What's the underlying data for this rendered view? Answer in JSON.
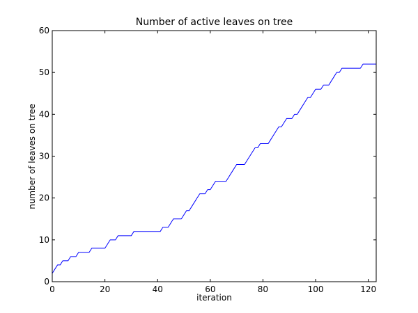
{
  "colors": {
    "line": "#0000ff",
    "axes": "#000000",
    "background": "#ffffff"
  },
  "chart_data": {
    "type": "line",
    "title": "Number of active leaves on tree",
    "xlabel": "iteration",
    "ylabel": "number of leaves on tree",
    "xlim": [
      0,
      123
    ],
    "ylim": [
      0,
      60
    ],
    "xticks": [
      0,
      20,
      40,
      60,
      80,
      100,
      120
    ],
    "yticks": [
      0,
      10,
      20,
      30,
      40,
      50,
      60
    ],
    "grid": false,
    "series": [
      {
        "color": "#0000ff",
        "x": [
          0,
          1,
          2,
          3,
          4,
          5,
          6,
          7,
          8,
          9,
          10,
          11,
          12,
          13,
          14,
          15,
          16,
          17,
          18,
          19,
          20,
          21,
          22,
          23,
          24,
          25,
          26,
          27,
          28,
          29,
          30,
          31,
          32,
          33,
          34,
          35,
          36,
          37,
          38,
          39,
          40,
          41,
          42,
          43,
          44,
          45,
          46,
          47,
          48,
          49,
          50,
          51,
          52,
          53,
          54,
          55,
          56,
          57,
          58,
          59,
          60,
          61,
          62,
          63,
          64,
          65,
          66,
          67,
          68,
          69,
          70,
          71,
          72,
          73,
          74,
          75,
          76,
          77,
          78,
          79,
          80,
          81,
          82,
          83,
          84,
          85,
          86,
          87,
          88,
          89,
          90,
          91,
          92,
          93,
          94,
          95,
          96,
          97,
          98,
          99,
          100,
          101,
          102,
          103,
          104,
          105,
          106,
          107,
          108,
          109,
          110,
          111,
          112,
          113,
          114,
          115,
          116,
          117,
          118,
          119,
          120,
          121,
          122,
          123
        ],
        "y": [
          2,
          3,
          4,
          4,
          5,
          5,
          5,
          6,
          6,
          6,
          7,
          7,
          7,
          7,
          7,
          8,
          8,
          8,
          8,
          8,
          8,
          9,
          10,
          10,
          10,
          11,
          11,
          11,
          11,
          11,
          11,
          12,
          12,
          12,
          12,
          12,
          12,
          12,
          12,
          12,
          12,
          12,
          13,
          13,
          13,
          14,
          15,
          15,
          15,
          15,
          16,
          17,
          17,
          18,
          19,
          20,
          21,
          21,
          21,
          22,
          22,
          23,
          24,
          24,
          24,
          24,
          24,
          25,
          26,
          27,
          28,
          28,
          28,
          28,
          29,
          30,
          31,
          32,
          32,
          33,
          33,
          33,
          33,
          34,
          35,
          36,
          37,
          37,
          38,
          39,
          39,
          39,
          40,
          40,
          41,
          42,
          43,
          44,
          44,
          45,
          46,
          46,
          46,
          47,
          47,
          47,
          48,
          49,
          50,
          50,
          51,
          51,
          51,
          51,
          51,
          51,
          51,
          51,
          52,
          52,
          52,
          52,
          52,
          52
        ]
      }
    ]
  }
}
